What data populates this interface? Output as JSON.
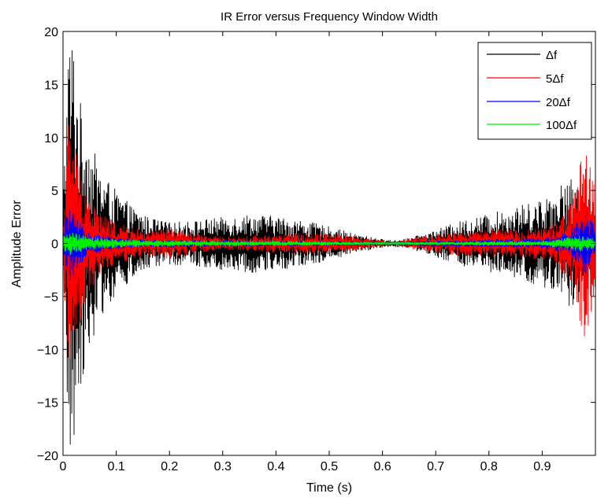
{
  "chart_data": {
    "type": "line",
    "title": "IR Error versus Frequency Window Width",
    "xlabel": "Time (s)",
    "ylabel": "Amplitude Error",
    "xlim": [
      0,
      1
    ],
    "ylim": [
      -20,
      20
    ],
    "xticks": [
      0,
      0.1,
      0.2,
      0.3,
      0.4,
      0.5,
      0.6,
      0.7,
      0.8,
      0.9
    ],
    "xtick_labels": [
      "0",
      "0.1",
      "0.2",
      "0.3",
      "0.4",
      "0.5",
      "0.6",
      "0.7",
      "0.8",
      "0.9"
    ],
    "yticks": [
      -20,
      -15,
      -10,
      -5,
      0,
      5,
      10,
      15,
      20
    ],
    "ytick_labels": [
      "−20",
      "−15",
      "−10",
      "−5",
      "0",
      "5",
      "10",
      "15",
      "20"
    ],
    "grid": false,
    "legend_position": "top-right",
    "note": "Each series is a dense oscillating error trace; values below are the approximate envelope amplitude (max |error|) at each time, centered on 0.",
    "series": [
      {
        "name": "Δf",
        "color": "#000000",
        "envelope": {
          "x": [
            0,
            0.01,
            0.02,
            0.03,
            0.05,
            0.07,
            0.1,
            0.13,
            0.16,
            0.2,
            0.25,
            0.3,
            0.35,
            0.4,
            0.45,
            0.5,
            0.55,
            0.6,
            0.62,
            0.65,
            0.7,
            0.75,
            0.8,
            0.85,
            0.9,
            0.93,
            0.96,
            0.98,
            1.0
          ],
          "y": [
            4,
            20,
            20,
            14,
            10,
            7,
            5,
            3.5,
            2.5,
            2,
            2.2,
            2.5,
            2.8,
            2.6,
            2.2,
            1.6,
            0.9,
            0.4,
            0.3,
            0.5,
            1.3,
            2.2,
            2.8,
            3.5,
            4.2,
            5.5,
            6.2,
            5,
            3
          ]
        }
      },
      {
        "name": "5Δf",
        "color": "#ff0000",
        "envelope": {
          "x": [
            0,
            0.01,
            0.02,
            0.03,
            0.05,
            0.07,
            0.1,
            0.13,
            0.16,
            0.2,
            0.25,
            0.3,
            0.35,
            0.4,
            0.45,
            0.5,
            0.55,
            0.6,
            0.62,
            0.65,
            0.7,
            0.75,
            0.8,
            0.85,
            0.9,
            0.93,
            0.96,
            0.98,
            1.0
          ],
          "y": [
            3,
            12,
            10,
            8,
            4.5,
            3,
            2,
            1.5,
            1.2,
            1.5,
            0.9,
            0.6,
            0.7,
            0.9,
            1,
            1,
            0.7,
            0.3,
            0.2,
            0.5,
            0.9,
            1.2,
            1.3,
            1.3,
            1.5,
            2,
            5,
            10,
            6
          ]
        }
      },
      {
        "name": "20Δf",
        "color": "#0000ff",
        "envelope": {
          "x": [
            0,
            0.01,
            0.02,
            0.03,
            0.05,
            0.1,
            0.15,
            0.2,
            0.3,
            0.4,
            0.5,
            0.6,
            0.7,
            0.8,
            0.9,
            0.95,
            0.98,
            1.0
          ],
          "y": [
            1,
            4,
            3,
            2,
            1.2,
            0.6,
            0.4,
            0.4,
            0.3,
            0.3,
            0.25,
            0.15,
            0.3,
            0.4,
            0.5,
            1,
            3,
            2
          ]
        }
      },
      {
        "name": "100Δf",
        "color": "#00ee00",
        "envelope": {
          "x": [
            0,
            0.01,
            0.02,
            0.05,
            0.1,
            0.2,
            0.3,
            0.4,
            0.5,
            0.6,
            0.7,
            0.8,
            0.9,
            0.98,
            1.0
          ],
          "y": [
            0.6,
            1.2,
            1,
            0.6,
            0.4,
            0.3,
            0.25,
            0.25,
            0.2,
            0.1,
            0.15,
            0.2,
            0.25,
            0.8,
            0.5
          ]
        }
      }
    ]
  }
}
